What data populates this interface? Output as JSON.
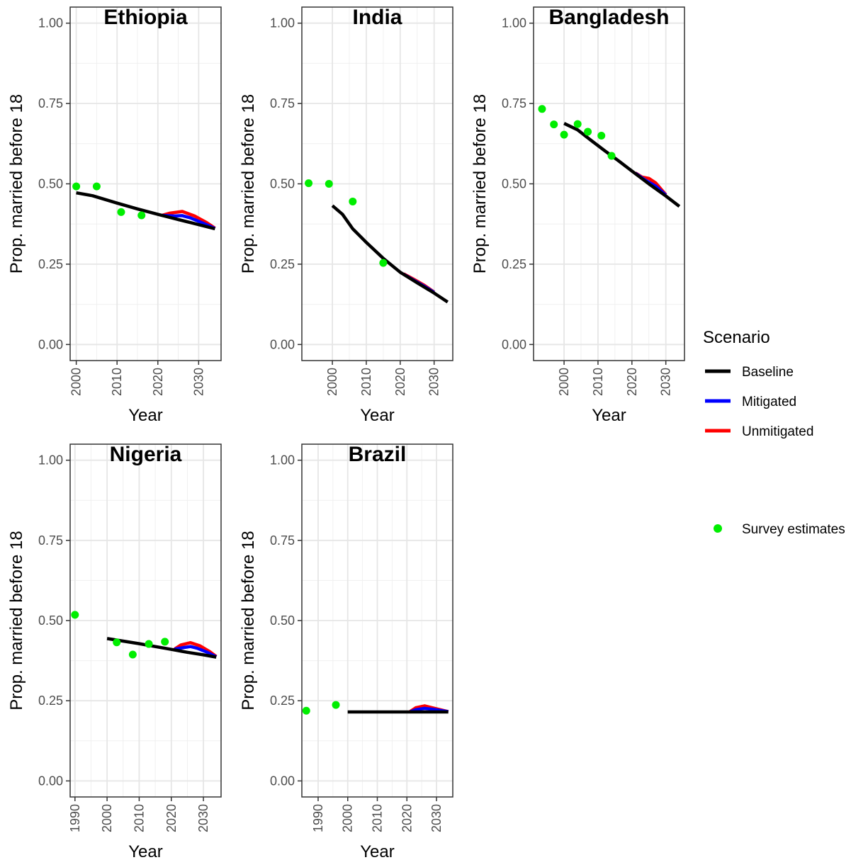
{
  "legend": {
    "title": "Scenario",
    "items": [
      {
        "label": "Baseline",
        "color": "#000000",
        "kind": "line"
      },
      {
        "label": "Mitigated",
        "color": "#0000ff",
        "kind": "line"
      },
      {
        "label": "Unmitigated",
        "color": "#ff0000",
        "kind": "line"
      },
      {
        "label": "Survey estimates",
        "color": "#00ee00",
        "kind": "point"
      }
    ]
  },
  "chart_data": [
    {
      "type": "line",
      "title": "Ethiopia",
      "xlabel": "Year",
      "ylabel": "Prop. married before 18",
      "xlim": [
        1998.5,
        2035.5
      ],
      "ylim": [
        -0.05,
        1.05
      ],
      "xticks": [
        "2000",
        "2010",
        "2020",
        "2030"
      ],
      "yticks": [
        "0.00",
        "0.25",
        "0.50",
        "0.75",
        "1.00"
      ],
      "series": [
        {
          "name": "Baseline",
          "color": "#000000",
          "x": [
            2000,
            2004,
            2010,
            2015,
            2020,
            2025,
            2030,
            2034
          ],
          "y": [
            0.472,
            0.463,
            0.44,
            0.422,
            0.405,
            0.389,
            0.373,
            0.36
          ]
        },
        {
          "name": "Mitigated",
          "color": "#0000ff",
          "x": [
            2021,
            2024,
            2026,
            2028,
            2031,
            2034
          ],
          "y": [
            0.402,
            0.4,
            0.401,
            0.394,
            0.378,
            0.361
          ]
        },
        {
          "name": "Unmitigated",
          "color": "#ff0000",
          "x": [
            2021,
            2023,
            2026,
            2029,
            2032,
            2034
          ],
          "y": [
            0.402,
            0.409,
            0.414,
            0.4,
            0.379,
            0.362
          ]
        },
        {
          "name": "Survey estimates",
          "color": "#00ee00",
          "points": [
            [
              2000,
              0.492
            ],
            [
              2005,
              0.492
            ],
            [
              2011,
              0.412
            ],
            [
              2016,
              0.402
            ]
          ]
        }
      ]
    },
    {
      "type": "line",
      "title": "India",
      "xlabel": "Year",
      "ylabel": "Prop. married before 18",
      "xlim": [
        1991,
        2035.5
      ],
      "ylim": [
        -0.05,
        1.05
      ],
      "xticks": [
        "2000",
        "2010",
        "2020",
        "2030"
      ],
      "yticks": [
        "0.00",
        "0.25",
        "0.50",
        "0.75",
        "1.00"
      ],
      "series": [
        {
          "name": "Baseline",
          "color": "#000000",
          "x": [
            2000,
            2003,
            2006,
            2010,
            2015,
            2020,
            2025,
            2030,
            2034
          ],
          "y": [
            0.432,
            0.405,
            0.36,
            0.318,
            0.268,
            0.225,
            0.192,
            0.16,
            0.132
          ]
        },
        {
          "name": "Mitigated",
          "color": "#0000ff",
          "x": [
            2021,
            2024,
            2027,
            2030
          ],
          "y": [
            0.219,
            0.2,
            0.182,
            0.162
          ]
        },
        {
          "name": "Unmitigated",
          "color": "#ff0000",
          "x": [
            2021,
            2024,
            2027,
            2030
          ],
          "y": [
            0.22,
            0.203,
            0.185,
            0.163
          ]
        },
        {
          "name": "Survey estimates",
          "color": "#00ee00",
          "points": [
            [
              1993,
              0.502
            ],
            [
              1999,
              0.5
            ],
            [
              2006,
              0.445
            ],
            [
              2015,
              0.254
            ]
          ]
        }
      ]
    },
    {
      "type": "line",
      "title": "Bangladesh",
      "xlabel": "Year",
      "ylabel": "Prop. married before 18",
      "xlim": [
        1991,
        2035.5
      ],
      "ylim": [
        -0.05,
        1.05
      ],
      "xticks": [
        "2000",
        "2010",
        "2020",
        "2030"
      ],
      "yticks": [
        "0.00",
        "0.25",
        "0.50",
        "0.75",
        "1.00"
      ],
      "series": [
        {
          "name": "Baseline",
          "color": "#000000",
          "x": [
            2000,
            2004,
            2008,
            2012,
            2016,
            2020,
            2025,
            2030,
            2034
          ],
          "y": [
            0.688,
            0.668,
            0.635,
            0.603,
            0.572,
            0.54,
            0.5,
            0.462,
            0.43
          ]
        },
        {
          "name": "Mitigated",
          "color": "#0000ff",
          "x": [
            2021,
            2024,
            2027,
            2030
          ],
          "y": [
            0.533,
            0.511,
            0.493,
            0.465
          ]
        },
        {
          "name": "Unmitigated",
          "color": "#ff0000",
          "x": [
            2021,
            2023,
            2025,
            2027,
            2030
          ],
          "y": [
            0.534,
            0.521,
            0.517,
            0.503,
            0.466
          ]
        },
        {
          "name": "Survey estimates",
          "color": "#00ee00",
          "points": [
            [
              1993.5,
              0.733
            ],
            [
              1997,
              0.685
            ],
            [
              2000,
              0.653
            ],
            [
              2004,
              0.686
            ],
            [
              2007,
              0.662
            ],
            [
              2011,
              0.65
            ],
            [
              2014,
              0.587
            ]
          ]
        }
      ]
    },
    {
      "type": "line",
      "title": "Nigeria",
      "xlabel": "Year",
      "ylabel": "Prop. married before 18",
      "xlim": [
        1988.5,
        2035.5
      ],
      "ylim": [
        -0.05,
        1.05
      ],
      "xticks": [
        "1990",
        "2000",
        "2010",
        "2020",
        "2030"
      ],
      "yticks": [
        "0.00",
        "0.25",
        "0.50",
        "0.75",
        "1.00"
      ],
      "series": [
        {
          "name": "Baseline",
          "color": "#000000",
          "x": [
            2000,
            2005,
            2010,
            2015,
            2020,
            2025,
            2030,
            2034
          ],
          "y": [
            0.444,
            0.436,
            0.428,
            0.419,
            0.41,
            0.401,
            0.393,
            0.386
          ]
        },
        {
          "name": "Mitigated",
          "color": "#0000ff",
          "x": [
            2021,
            2024,
            2026,
            2028,
            2031,
            2034
          ],
          "y": [
            0.411,
            0.416,
            0.419,
            0.414,
            0.402,
            0.387
          ]
        },
        {
          "name": "Unmitigated",
          "color": "#ff0000",
          "x": [
            2021,
            2023,
            2026,
            2029,
            2032,
            2034
          ],
          "y": [
            0.411,
            0.424,
            0.431,
            0.421,
            0.403,
            0.388
          ]
        },
        {
          "name": "Survey estimates",
          "color": "#00ee00",
          "points": [
            [
              1990,
              0.518
            ],
            [
              2003,
              0.432
            ],
            [
              2008,
              0.394
            ],
            [
              2013,
              0.427
            ],
            [
              2018,
              0.434
            ]
          ]
        }
      ]
    },
    {
      "type": "line",
      "title": "Brazil",
      "xlabel": "Year",
      "ylabel": "Prop. married before 18",
      "xlim": [
        1984.5,
        2035.5
      ],
      "ylim": [
        -0.05,
        1.05
      ],
      "xticks": [
        "1990",
        "2000",
        "2010",
        "2020",
        "2030"
      ],
      "yticks": [
        "0.00",
        "0.25",
        "0.50",
        "0.75",
        "1.00"
      ],
      "series": [
        {
          "name": "Baseline",
          "color": "#000000",
          "x": [
            2000,
            2034
          ],
          "y": [
            0.215,
            0.215
          ]
        },
        {
          "name": "Mitigated",
          "color": "#0000ff",
          "x": [
            2021,
            2023,
            2026,
            2029,
            2034
          ],
          "y": [
            0.215,
            0.222,
            0.226,
            0.223,
            0.216
          ]
        },
        {
          "name": "Unmitigated",
          "color": "#ff0000",
          "x": [
            2021,
            2023,
            2026,
            2029,
            2034
          ],
          "y": [
            0.216,
            0.228,
            0.234,
            0.227,
            0.216
          ]
        },
        {
          "name": "Survey estimates",
          "color": "#00ee00",
          "points": [
            [
              1986,
              0.219
            ],
            [
              1996,
              0.237
            ]
          ]
        }
      ]
    }
  ]
}
